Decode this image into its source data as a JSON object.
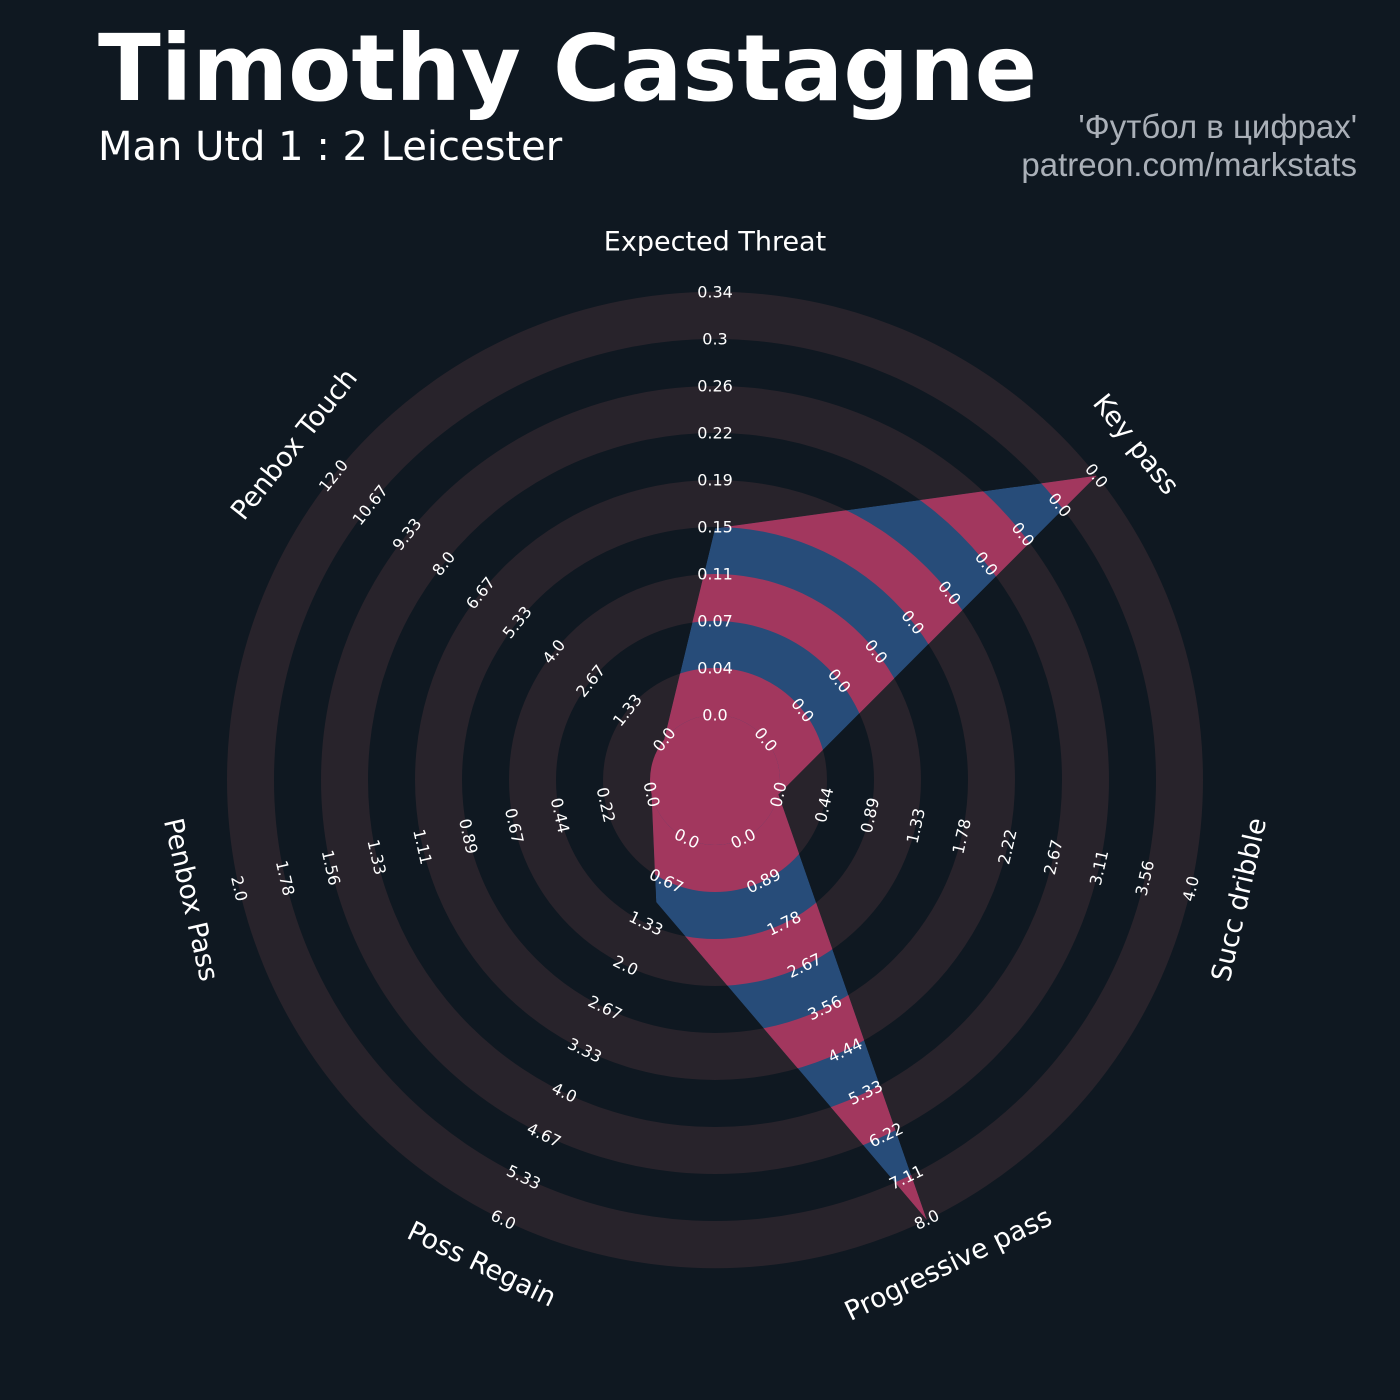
{
  "header": {
    "title": "Timothy Castagne",
    "subtitle": "Man Utd 1 : 2 Leicester",
    "credit_line1": "'Футбол в цифрах'",
    "credit_line2": "patreon.com/markstats"
  },
  "colors": {
    "background": "#0f1821",
    "ring": "#28232b",
    "fill_blue": "#274c79",
    "fill_pink": "#a2375e",
    "text": "#ffffff",
    "credit": "#aab0b8"
  },
  "chart_data": {
    "type": "radar",
    "title": "Timothy Castagne",
    "subtitle": "Man Utd 1 : 2 Leicester",
    "params": [
      {
        "name": "Expected Threat",
        "value": 0.15,
        "ticks": [
          "0.0",
          "0.04",
          "0.07",
          "0.11",
          "0.15",
          "0.19",
          "0.22",
          "0.26",
          "0.3",
          "0.34"
        ]
      },
      {
        "name": "Key pass",
        "value": 0.0,
        "ticks": [
          "0.0",
          "0.0",
          "0.0",
          "0.0",
          "0.0",
          "0.0",
          "0.0",
          "0.0",
          "0.0",
          "0.0"
        ]
      },
      {
        "name": "Succ dribble",
        "value": 0.0,
        "ticks": [
          "0.0",
          "0.44",
          "0.89",
          "1.33",
          "1.78",
          "2.22",
          "2.67",
          "3.11",
          "3.56",
          "4.0"
        ]
      },
      {
        "name": "Progressive pass",
        "value": 8.0,
        "ticks": [
          "0.0",
          "0.89",
          "1.78",
          "2.67",
          "3.56",
          "4.44",
          "5.33",
          "6.22",
          "7.11",
          "8.0"
        ]
      },
      {
        "name": "Poss Regain",
        "value": 1.0,
        "ticks": [
          "0.0",
          "0.67",
          "1.33",
          "2.0",
          "2.67",
          "3.33",
          "4.0",
          "4.67",
          "5.33",
          "6.0"
        ]
      },
      {
        "name": "Penbox Pass",
        "value": 0.0,
        "ticks": [
          "0.0",
          "0.22",
          "0.44",
          "0.67",
          "0.89",
          "1.11",
          "1.33",
          "1.56",
          "1.78",
          "2.0"
        ]
      },
      {
        "name": "Penbox Touch",
        "value": 0.0,
        "ticks": [
          "0.0",
          "1.33",
          "2.67",
          "4.0",
          "5.33",
          "6.67",
          "8.0",
          "9.33",
          "10.67",
          "12.0"
        ]
      }
    ],
    "ranges": [
      [
        0,
        0.34
      ],
      [
        0,
        0.0
      ],
      [
        0,
        4.0
      ],
      [
        0,
        8.0
      ],
      [
        0,
        6.0
      ],
      [
        0,
        2.0
      ],
      [
        0,
        12.0
      ]
    ],
    "filled_params_override_fraction": [
      null,
      1.0,
      null,
      null,
      null,
      null,
      null
    ],
    "legend": "none",
    "grid": "concentric rings"
  }
}
